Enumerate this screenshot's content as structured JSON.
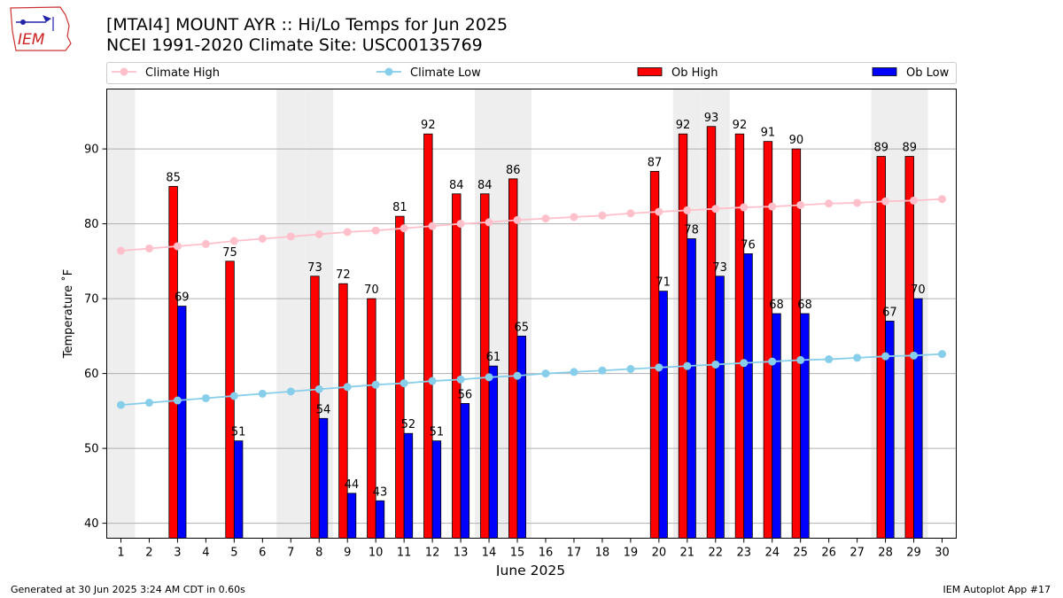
{
  "header": {
    "title_line1": "[MTAI4] MOUNT AYR :: Hi/Lo Temps for Jun 2025",
    "title_line2": "NCEI 1991-2020 Climate Site: USC00135769",
    "logo_text": "IEM"
  },
  "footer": {
    "generated": "Generated at 30 Jun 2025 3:24 AM CDT in 0.60s",
    "app": "IEM Autoplot App #17"
  },
  "colors": {
    "climate_high": "#ffc0cb",
    "climate_low": "#87ceeb",
    "ob_high": "#ff0000",
    "ob_low": "#0000ff",
    "weekend_shade": "#eeeeee",
    "grid": "#b0b0b0"
  },
  "chart_data": {
    "type": "bar",
    "xlabel": "June 2025",
    "ylabel": "Temperature ˚F",
    "xlim": [
      0.5,
      30.5
    ],
    "ylim": [
      38,
      98
    ],
    "yticks": [
      40,
      50,
      60,
      70,
      80,
      90
    ],
    "grid": "horizontal",
    "legend_placement": "top",
    "weekend_shading_days": [
      1,
      7,
      8,
      14,
      15,
      21,
      22,
      28,
      29
    ],
    "days": [
      1,
      2,
      3,
      4,
      5,
      6,
      7,
      8,
      9,
      10,
      11,
      12,
      13,
      14,
      15,
      16,
      17,
      18,
      19,
      20,
      21,
      22,
      23,
      24,
      25,
      26,
      27,
      28,
      29,
      30
    ],
    "legend": [
      "Climate High",
      "Climate Low",
      "Ob High",
      "Ob Low"
    ],
    "series": [
      {
        "name": "Climate High",
        "kind": "line",
        "values": [
          76.4,
          76.7,
          77.0,
          77.3,
          77.7,
          78.0,
          78.3,
          78.6,
          78.9,
          79.1,
          79.4,
          79.7,
          80.0,
          80.2,
          80.5,
          80.7,
          80.9,
          81.1,
          81.4,
          81.6,
          81.8,
          82.0,
          82.2,
          82.3,
          82.5,
          82.7,
          82.8,
          83.0,
          83.1,
          83.3
        ]
      },
      {
        "name": "Climate Low",
        "kind": "line",
        "values": [
          55.8,
          56.1,
          56.4,
          56.7,
          57.0,
          57.3,
          57.6,
          57.9,
          58.2,
          58.5,
          58.7,
          59.0,
          59.2,
          59.5,
          59.7,
          60.0,
          60.2,
          60.4,
          60.6,
          60.8,
          61.0,
          61.2,
          61.4,
          61.6,
          61.8,
          61.9,
          62.1,
          62.3,
          62.4,
          62.6
        ]
      },
      {
        "name": "Ob High",
        "kind": "bar",
        "values": [
          null,
          null,
          85,
          null,
          75,
          null,
          null,
          73,
          72,
          70,
          81,
          92,
          84,
          84,
          86,
          null,
          null,
          null,
          null,
          87,
          92,
          93,
          92,
          91,
          90,
          null,
          null,
          89,
          89,
          null
        ]
      },
      {
        "name": "Ob Low",
        "kind": "bar",
        "values": [
          null,
          null,
          69,
          null,
          51,
          null,
          null,
          54,
          44,
          43,
          52,
          51,
          56,
          61,
          65,
          null,
          null,
          null,
          null,
          71,
          78,
          73,
          76,
          68,
          68,
          null,
          null,
          67,
          70,
          null
        ]
      }
    ]
  }
}
